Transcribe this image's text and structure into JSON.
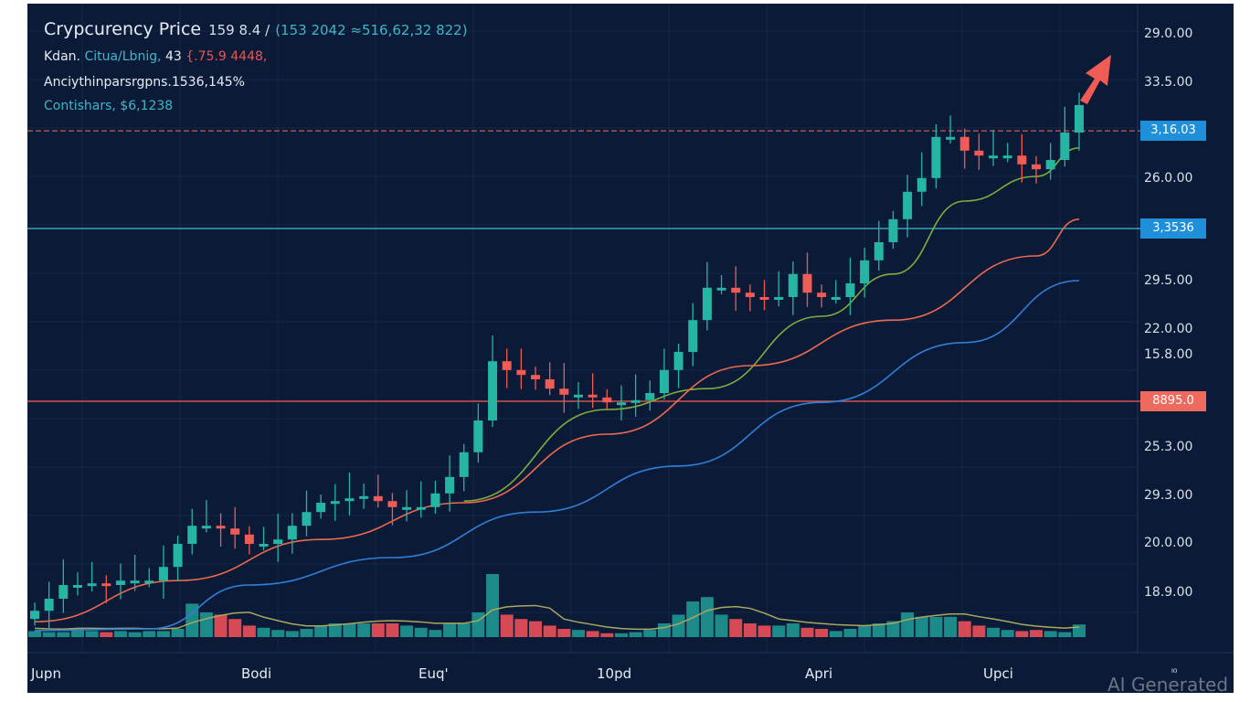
{
  "header": {
    "title": "Crypcurency Price",
    "title_value_1": "159 8.4 /",
    "title_value_2": "(153 2042 ≈516,62,32 822)",
    "line2_label": "Kdan.",
    "line2_teal": "Citua/Lbnig,",
    "line2_value": "43",
    "line2_red": "{.75.9 4448,",
    "line3": "Anciythinparsrgpns.1536,145%",
    "line4_label": "Contishars,",
    "line4_value": "$6,1238"
  },
  "y_axis": {
    "ticks": [
      "29.0.00",
      "33.5.00",
      "26.0.00",
      "29.5.00",
      "22.0.00",
      "15.8.00",
      "25.3.00",
      "29.3.00",
      "20.0.00",
      "18.9.00"
    ]
  },
  "price_tags": [
    {
      "label": "3,16.03",
      "level": 92.8,
      "color": "#1e8fd8",
      "line_color": "#b3584e",
      "style": "dashed"
    },
    {
      "label": "3,3536",
      "level": 75,
      "color": "#1e8fd8",
      "line_color": "#3a9fb8",
      "style": "solid"
    },
    {
      "label": "8895.0",
      "level": 43.5,
      "color": "#ef6a5e",
      "line_color": "#d0544a",
      "style": "solid"
    }
  ],
  "x_axis": {
    "ticks": [
      "Jupn",
      "Bodi",
      "Euq'",
      "10pd",
      "Apri",
      "Upci",
      "ₗ₀"
    ]
  },
  "watermark": "AI Generated",
  "colors": {
    "up": "#26b5a2",
    "down": "#ef5b55",
    "ma_fast": "#7fae3a",
    "ma_mid": "#ec6a4f",
    "ma_slow": "#2f7fd8",
    "vol_ma": "#a9a860",
    "vol_up": "#1d8a8a",
    "vol_down": "#d64a55",
    "arrow": "#ef5b55"
  },
  "chart_data": {
    "type": "candlestick",
    "title": "Crypcurency Price",
    "ylim": [
      0,
      100
    ],
    "closes": [
      5.3,
      7.5,
      10,
      10,
      10.3,
      10,
      10.8,
      10.8,
      10.8,
      13.3,
      17.5,
      20.8,
      20.8,
      20.3,
      19.2,
      17.5,
      17.5,
      18.3,
      20.8,
      23.3,
      25,
      25.3,
      25.8,
      26.2,
      25.3,
      24.2,
      24.2,
      24.2,
      26.7,
      29.7,
      34.2,
      40,
      50.8,
      49.2,
      48.3,
      47.5,
      45.8,
      44.7,
      44.7,
      44.2,
      43.3,
      43.3,
      43.7,
      45,
      49.2,
      52.5,
      58.3,
      64.2,
      64.2,
      63.3,
      62.5,
      62,
      62.5,
      66.7,
      63.3,
      62.5,
      62.5,
      65,
      69.2,
      72.5,
      76.7,
      81.7,
      84.2,
      91.7,
      91.7,
      89.2,
      88.3,
      88.3,
      88.3,
      86.7,
      85.8,
      87.5,
      92.5,
      97.5
    ],
    "volume": [
      3,
      2,
      2,
      5,
      3,
      2,
      3,
      2,
      3,
      3,
      5,
      28,
      20,
      18,
      14,
      8,
      6,
      4,
      3,
      5,
      8,
      10,
      10,
      10,
      10,
      10,
      8,
      6,
      4,
      10,
      10,
      20,
      55,
      18,
      14,
      12,
      8,
      5,
      4,
      3,
      1,
      1,
      2,
      4,
      10,
      18,
      30,
      34,
      18,
      14,
      10,
      8,
      8,
      10,
      6,
      5,
      3,
      5,
      8,
      10,
      12,
      20,
      16,
      16,
      16,
      12,
      8,
      6,
      4,
      3,
      4,
      3,
      2,
      9
    ],
    "moving_averages": [
      {
        "name": "MA fast",
        "points": [
          [
            30,
            25.3
          ],
          [
            40,
            42
          ],
          [
            47,
            45.8
          ],
          [
            55,
            59
          ],
          [
            60,
            66.7
          ],
          [
            65,
            80
          ],
          [
            70,
            84.5
          ],
          [
            73,
            89.7
          ]
        ]
      },
      {
        "name": "MA mid",
        "points": [
          [
            0,
            3.3
          ],
          [
            10,
            10.8
          ],
          [
            20,
            18.3
          ],
          [
            30,
            25
          ],
          [
            40,
            37.5
          ],
          [
            50,
            50
          ],
          [
            60,
            58.3
          ],
          [
            70,
            70
          ],
          [
            73,
            76.7
          ]
        ]
      },
      {
        "name": "MA slow",
        "points": [
          [
            0,
            1.7
          ],
          [
            8,
            2
          ],
          [
            15,
            10
          ],
          [
            25,
            15
          ],
          [
            35,
            23.3
          ],
          [
            45,
            31.7
          ],
          [
            55,
            43.3
          ],
          [
            65,
            54.2
          ],
          [
            73,
            65.5
          ]
        ]
      }
    ]
  }
}
